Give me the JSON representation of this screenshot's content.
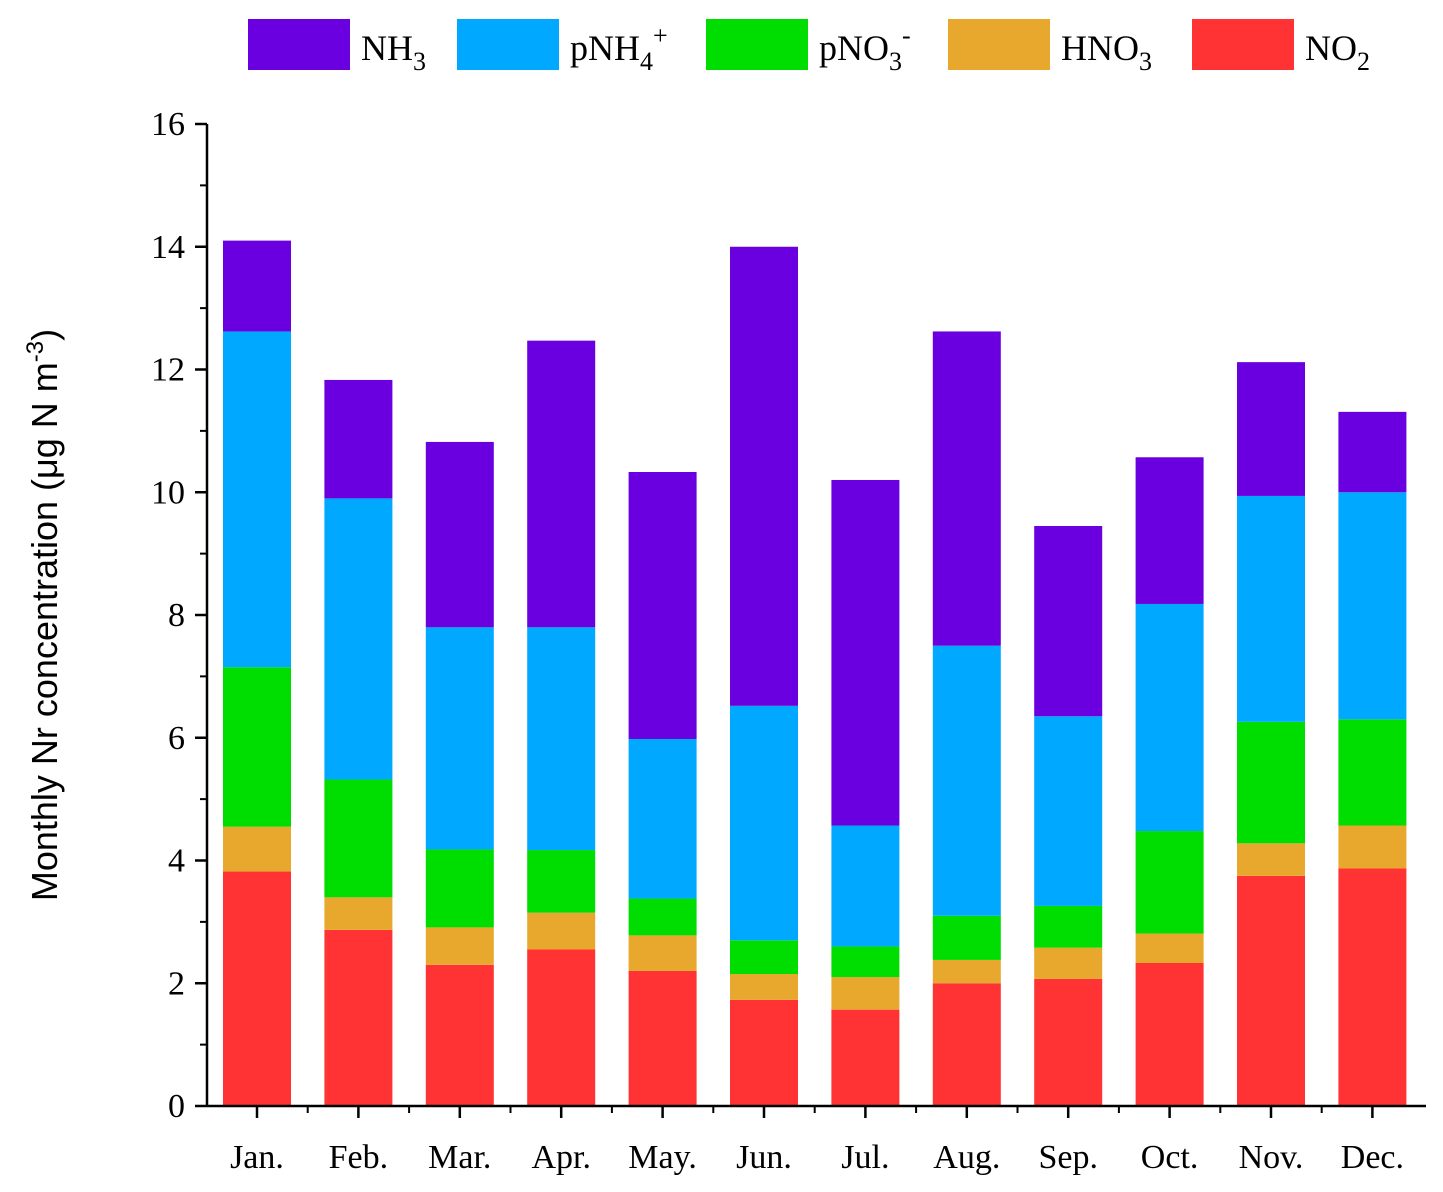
{
  "chart_data": {
    "type": "bar",
    "stacked": true,
    "title": "",
    "xlabel": "",
    "ylabel": "Monthly Nr concentration (μg N m⁻³)",
    "ylabel_parts": {
      "main": "Monthly Nr concentration (μg N m",
      "sup": "-3",
      "close": ")"
    },
    "ylim": [
      0,
      16
    ],
    "yticks": [
      0,
      2,
      4,
      6,
      8,
      10,
      12,
      14,
      16
    ],
    "grid": false,
    "legend_position": "top",
    "categories": [
      "Jan.",
      "Feb.",
      "Mar.",
      "Apr.",
      "May.",
      "Jun.",
      "Jul.",
      "Aug.",
      "Sep.",
      "Oct.",
      "Nov.",
      "Dec."
    ],
    "series": [
      {
        "name": "NO2",
        "label_main": "NO",
        "label_sub": "2",
        "label_sup": "",
        "color": "#ff3333",
        "values": [
          3.82,
          2.87,
          2.3,
          2.55,
          2.2,
          1.73,
          1.57,
          2.0,
          2.07,
          2.33,
          3.75,
          3.87
        ]
      },
      {
        "name": "HNO3",
        "label_main": "HNO",
        "label_sub": "3",
        "label_sup": "",
        "color": "#e8a82e",
        "values": [
          0.73,
          0.53,
          0.61,
          0.6,
          0.58,
          0.42,
          0.53,
          0.38,
          0.51,
          0.48,
          0.53,
          0.7
        ]
      },
      {
        "name": "pNO3-",
        "label_main": "pNO",
        "label_sub": "3",
        "label_sup": "-",
        "color": "#00dd00",
        "values": [
          2.6,
          1.92,
          1.27,
          1.02,
          0.6,
          0.55,
          0.5,
          0.72,
          0.68,
          1.67,
          1.98,
          1.73
        ]
      },
      {
        "name": "pNH4+",
        "label_main": "pNH",
        "label_sub": "4",
        "label_sup": "+",
        "color": "#00a8ff",
        "values": [
          5.47,
          4.58,
          3.62,
          3.63,
          2.6,
          3.82,
          1.97,
          4.4,
          3.09,
          3.7,
          3.68,
          3.7
        ]
      },
      {
        "name": "NH3",
        "label_main": "NH",
        "label_sub": "3",
        "label_sup": "",
        "color": "#6a00e0",
        "values": [
          1.48,
          1.93,
          3.02,
          4.67,
          4.35,
          7.48,
          5.63,
          5.12,
          3.1,
          2.39,
          2.18,
          1.31
        ]
      }
    ],
    "legend_order": [
      "NH3",
      "pNH4+",
      "pNO3-",
      "HNO3",
      "NO2"
    ]
  }
}
